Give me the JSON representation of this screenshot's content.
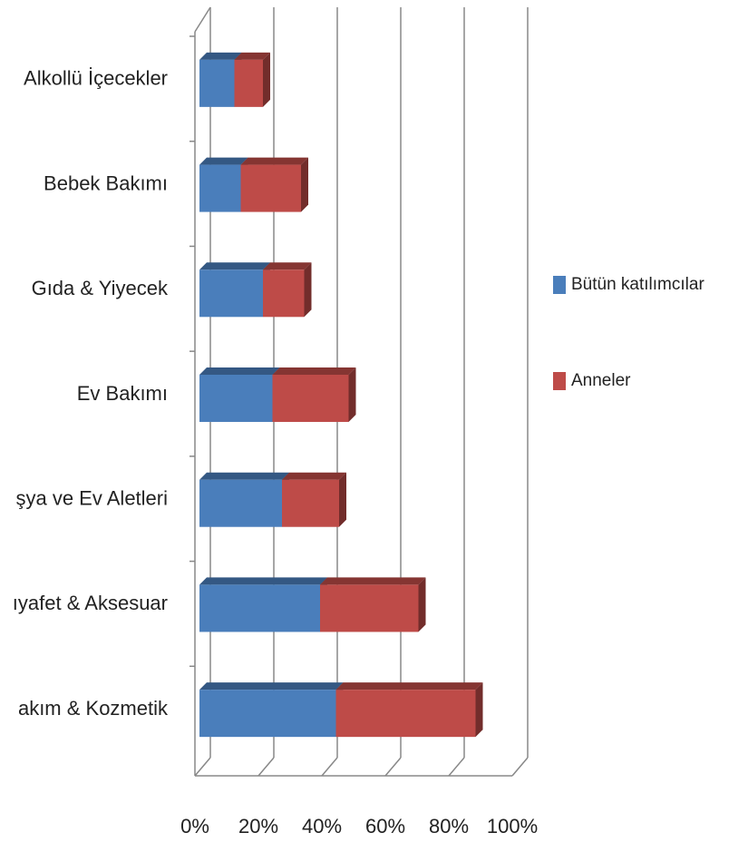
{
  "chart_data": {
    "type": "stacked-barh-3d",
    "categories": [
      "Alkollü İçecekler",
      "Bebek Bakımı",
      "Gıda & Yiyecek",
      "Ev Bakımı",
      "şya ve Ev Aletleri",
      "ıyafet & Aksesuar",
      "akım & Kozmetik"
    ],
    "series": [
      {
        "name": "Bütün katılımcılar",
        "color": "#4a7ebb",
        "values": [
          11,
          13,
          20,
          23,
          26,
          38,
          43
        ]
      },
      {
        "name": "Anneler",
        "color": "#be4b48",
        "values": [
          9,
          19,
          13,
          24,
          18,
          31,
          44
        ]
      }
    ],
    "xlim": [
      0,
      100
    ],
    "xticks": [
      {
        "value": 0,
        "label": "0%"
      },
      {
        "value": 20,
        "label": "20%"
      },
      {
        "value": 40,
        "label": "40%"
      },
      {
        "value": 60,
        "label": "60%"
      },
      {
        "value": 80,
        "label": "80%"
      },
      {
        "value": 100,
        "label": "100%"
      }
    ],
    "grid": true,
    "legend": "right"
  }
}
